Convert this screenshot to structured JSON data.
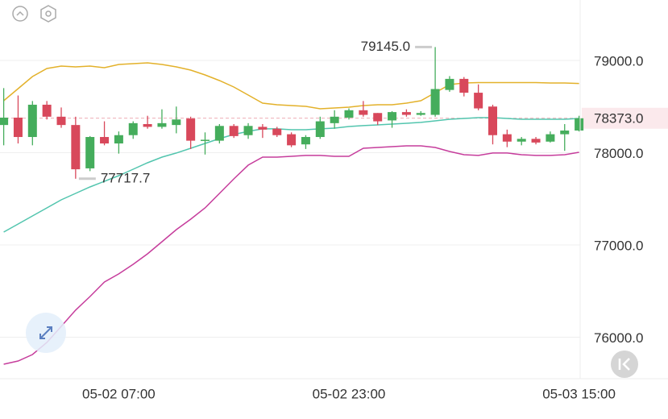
{
  "chart_data": {
    "type": "candlestick",
    "categories": [
      null,
      null,
      null,
      null,
      null,
      null,
      null,
      null,
      "05-02 07:00",
      null,
      null,
      null,
      null,
      null,
      null,
      null,
      null,
      null,
      null,
      null,
      null,
      null,
      null,
      null,
      "05-02 23:00",
      null,
      null,
      null,
      null,
      null,
      null,
      null,
      null,
      null,
      null,
      null,
      null,
      null,
      null,
      null,
      "05-03 15:00"
    ],
    "open": [
      78300,
      78380,
      78170,
      78520,
      78390,
      78300,
      77830,
      78170,
      78100,
      78190,
      78310,
      78280,
      78300,
      78370,
      78130,
      78130,
      78290,
      78190,
      78280,
      78260,
      78200,
      78090,
      78170,
      78320,
      78380,
      78460,
      78430,
      78350,
      78440,
      78410,
      78410,
      78680,
      78800,
      78650,
      78500,
      78200,
      78120,
      78150,
      78120,
      78200,
      78240
    ],
    "high": [
      78700,
      78620,
      78560,
      78560,
      78490,
      78390,
      78180,
      78340,
      78230,
      78340,
      78400,
      78470,
      78500,
      78390,
      78220,
      78310,
      78310,
      78320,
      78310,
      78280,
      78220,
      78190,
      78390,
      78460,
      78480,
      78560,
      78430,
      78450,
      78470,
      78450,
      79145,
      78830,
      78820,
      78740,
      78520,
      78250,
      78170,
      78170,
      78230,
      78310,
      78400
    ],
    "low": [
      78080,
      78100,
      78080,
      78360,
      78270,
      77717.7,
      77800,
      78080,
      77990,
      78150,
      78260,
      78260,
      78210,
      78040,
      77980,
      78100,
      78160,
      78150,
      78160,
      78170,
      78060,
      78040,
      78150,
      78260,
      78360,
      78390,
      78300,
      78270,
      78390,
      78400,
      78390,
      78660,
      78610,
      78460,
      78090,
      78060,
      78080,
      78090,
      78110,
      78020,
      78230
    ],
    "close": [
      78380,
      78170,
      78520,
      78390,
      78300,
      77820,
      78170,
      78100,
      78190,
      78320,
      78280,
      78320,
      78360,
      78130,
      78140,
      78290,
      78180,
      78290,
      78250,
      78190,
      78080,
      78170,
      78340,
      78390,
      78460,
      78410,
      78340,
      78440,
      78410,
      78430,
      78690,
      78800,
      78650,
      78480,
      78190,
      78120,
      78150,
      78110,
      78200,
      78240,
      78373
    ],
    "up_color": "#45ad5c",
    "down_color": "#d8485b",
    "series": [
      {
        "color": "#e3b12a",
        "values": [
          78563,
          78694,
          78825,
          78913,
          78939,
          78930,
          78939,
          78921,
          78956,
          78965,
          78974,
          78956,
          78930,
          78895,
          78843,
          78782,
          78712,
          78624,
          78537,
          78520,
          78511,
          78502,
          78476,
          78485,
          78493,
          78511,
          78520,
          78520,
          78537,
          78563,
          78651,
          78738,
          78755,
          78760,
          78760,
          78760,
          78760,
          78760,
          78755,
          78755,
          78750
        ]
      },
      {
        "color": "#52c5ae",
        "values": [
          77140,
          77227,
          77314,
          77402,
          77489,
          77559,
          77629,
          77690,
          77751,
          77821,
          77891,
          77952,
          77996,
          78048,
          78100,
          78153,
          78197,
          78231,
          78258,
          78258,
          78249,
          78249,
          78258,
          78266,
          78284,
          78293,
          78301,
          78310,
          78319,
          78328,
          78345,
          78362,
          78371,
          78380,
          78380,
          78371,
          78362,
          78362,
          78362,
          78362,
          78371
        ]
      },
      {
        "color": "#c63d9c",
        "values": [
          75707,
          75742,
          75812,
          75943,
          76118,
          76293,
          76441,
          76598,
          76686,
          76790,
          76904,
          77035,
          77166,
          77279,
          77402,
          77559,
          77716,
          77865,
          77952,
          77952,
          77961,
          77970,
          77970,
          77961,
          77961,
          78048,
          78057,
          78065,
          78074,
          78074,
          78057,
          78013,
          77978,
          77970,
          77996,
          77996,
          77978,
          77970,
          77970,
          77978,
          78004
        ]
      }
    ],
    "ylim": [
      75550,
      79655
    ],
    "yticks": [
      {
        "value": 76000,
        "label": "76000.0"
      },
      {
        "value": 77000,
        "label": "77000.0"
      },
      {
        "value": 78000,
        "label": "78000.0"
      },
      {
        "value": 79000,
        "label": "79000.0"
      }
    ],
    "grid": true,
    "max_label": {
      "value": 79145,
      "label": "79145.0"
    },
    "min_label": {
      "value": 77717.7,
      "label": "77717.7"
    },
    "current_price": {
      "value": 78373,
      "label": "78373.0"
    }
  }
}
